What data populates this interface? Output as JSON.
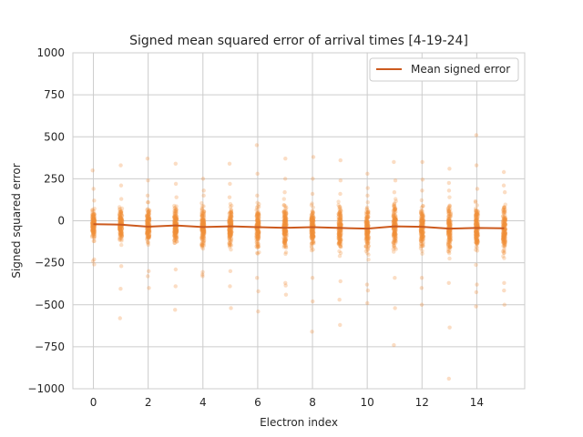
{
  "chart_data": {
    "type": "scatter",
    "title": "Signed mean squared error of arrival times [4-19-24]",
    "xlabel": "Electron index",
    "ylabel": "Signed squared error",
    "xlim": [
      -0.75,
      15.75
    ],
    "ylim": [
      -1000,
      1000
    ],
    "x_ticks": [
      0,
      2,
      4,
      6,
      8,
      10,
      12,
      14
    ],
    "y_ticks": [
      -1000,
      -750,
      -500,
      -250,
      0,
      250,
      500,
      750,
      1000
    ],
    "y_tick_labels": [
      "−1000",
      "−750",
      "−500",
      "−250",
      "0",
      "250",
      "500",
      "750",
      "1000"
    ],
    "grid": true,
    "legend": {
      "placement": "top-right",
      "entries": [
        "Mean signed error"
      ]
    },
    "colors": {
      "points": "#f28e3b",
      "line": "#cc5a1e",
      "grid": "#cccccc",
      "axes": "#cccccc"
    },
    "series": [
      {
        "name": "Mean signed error",
        "kind": "line",
        "x": [
          0,
          1,
          2,
          3,
          4,
          5,
          6,
          7,
          8,
          9,
          10,
          11,
          12,
          13,
          14,
          15
        ],
        "values": [
          -20,
          -23,
          -35,
          -28,
          -37,
          -33,
          -38,
          -42,
          -38,
          -43,
          -47,
          -33,
          -36,
          -47,
          -43,
          -45
        ]
      }
    ],
    "points_summary": [
      {
        "x": 0,
        "core": [
          -200,
          80
        ],
        "extremes": [
          -260,
          300
        ]
      },
      {
        "x": 1,
        "core": [
          -230,
          90
        ],
        "extremes": [
          -580,
          330
        ]
      },
      {
        "x": 2,
        "core": [
          -260,
          110
        ],
        "extremes": [
          -400,
          370
        ]
      },
      {
        "x": 3,
        "core": [
          -250,
          100
        ],
        "extremes": [
          -530,
          340
        ]
      },
      {
        "x": 4,
        "core": [
          -280,
          110
        ],
        "extremes": [
          -330,
          250
        ]
      },
      {
        "x": 5,
        "core": [
          -260,
          100
        ],
        "extremes": [
          -520,
          340
        ]
      },
      {
        "x": 6,
        "core": [
          -300,
          110
        ],
        "extremes": [
          -540,
          450
        ]
      },
      {
        "x": 7,
        "core": [
          -330,
          130
        ],
        "extremes": [
          -440,
          370
        ]
      },
      {
        "x": 8,
        "core": [
          -300,
          120
        ],
        "extremes": [
          -660,
          380
        ]
      },
      {
        "x": 9,
        "core": [
          -320,
          120
        ],
        "extremes": [
          -620,
          360
        ]
      },
      {
        "x": 10,
        "core": [
          -340,
          110
        ],
        "extremes": [
          -490,
          280
        ]
      },
      {
        "x": 11,
        "core": [
          -300,
          130
        ],
        "extremes": [
          -740,
          350
        ]
      },
      {
        "x": 12,
        "core": [
          -300,
          140
        ],
        "extremes": [
          -500,
          350
        ]
      },
      {
        "x": 13,
        "core": [
          -330,
          140
        ],
        "extremes": [
          -940,
          310
        ]
      },
      {
        "x": 14,
        "core": [
          -340,
          150
        ],
        "extremes": [
          -510,
          510
        ]
      },
      {
        "x": 15,
        "core": [
          -330,
          130
        ],
        "extremes": [
          -500,
          290
        ]
      }
    ]
  }
}
